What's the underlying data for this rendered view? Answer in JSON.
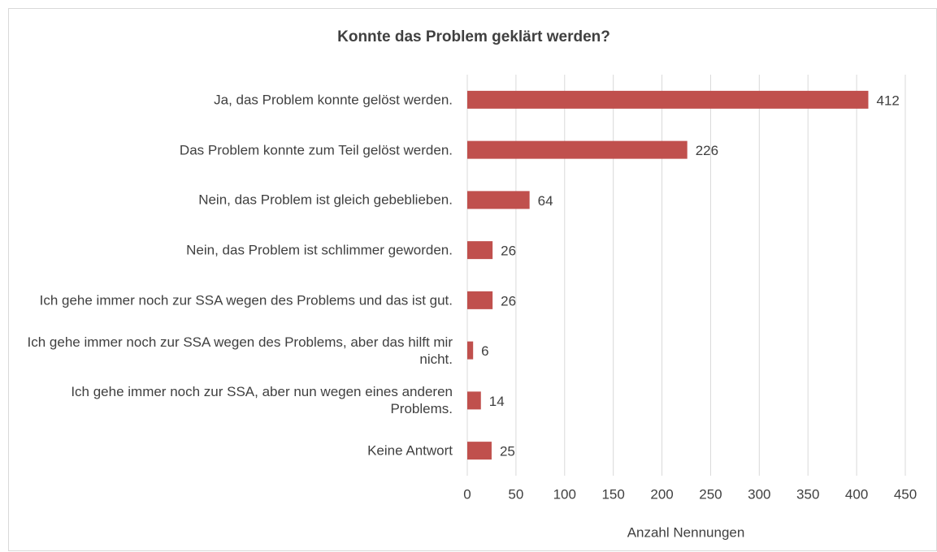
{
  "chart_data": {
    "type": "bar",
    "orientation": "horizontal",
    "title": "Konnte das Problem geklärt werden?",
    "x_label": "Anzahl Nennungen",
    "categories": [
      "Ja, das Problem konnte gelöst werden.",
      "Das Problem konnte zum Teil gelöst werden.",
      "Nein, das Problem ist gleich gebeblieben.",
      "Nein, das Problem ist schlimmer geworden.",
      "Ich gehe immer noch zur SSA wegen des Problems und das ist gut.",
      "Ich gehe immer noch zur SSA wegen des Problems, aber das hilft mir nicht.",
      "Ich gehe immer noch zur SSA, aber nun wegen eines anderen Problems.",
      "Keine Antwort"
    ],
    "values": [
      412,
      226,
      64,
      26,
      26,
      6,
      14,
      25
    ],
    "color": "#c0504d",
    "xlim": [
      0,
      450
    ],
    "xticks": [
      0,
      50,
      100,
      150,
      200,
      250,
      300,
      350,
      400,
      450
    ],
    "grid": true
  }
}
